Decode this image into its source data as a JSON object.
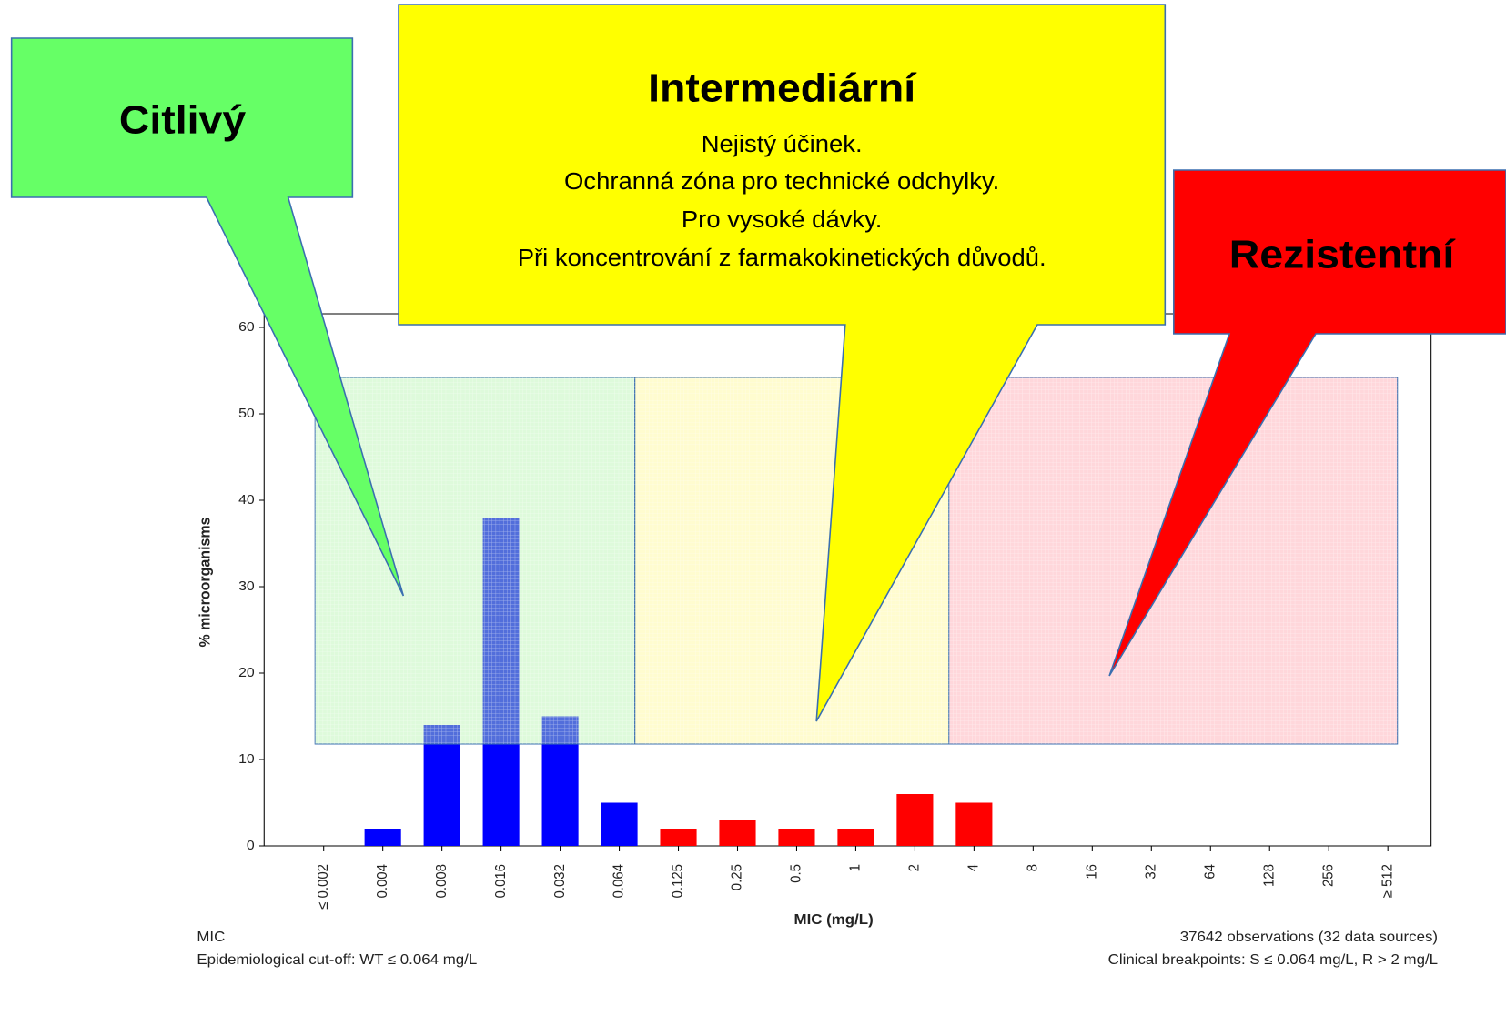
{
  "chart_data": {
    "type": "bar",
    "categories": [
      "≤ 0.002",
      "0.004",
      "0.008",
      "0.016",
      "0.032",
      "0.064",
      "0.125",
      "0.25",
      "0.5",
      "1",
      "2",
      "4",
      "8",
      "16",
      "32",
      "64",
      "128",
      "256",
      "≥ 512"
    ],
    "values": [
      0,
      2,
      14,
      38,
      15,
      5,
      2,
      3,
      2,
      2,
      6,
      5,
      0,
      0,
      0,
      0,
      0,
      0,
      0
    ],
    "bar_colors": [
      "#0000ff",
      "#0000ff",
      "#0000ff",
      "#0000ff",
      "#0000ff",
      "#0000ff",
      "#ff0000",
      "#ff0000",
      "#ff0000",
      "#ff0000",
      "#ff0000",
      "#ff0000",
      "#ff0000",
      "#ff0000",
      "#ff0000",
      "#ff0000",
      "#ff0000",
      "#ff0000",
      "#ff0000"
    ],
    "ylim": [
      0,
      60
    ],
    "yticks": [
      0,
      10,
      20,
      30,
      40,
      50,
      60
    ],
    "y_label": "% microorganisms",
    "x_label": "MIC (mg/L)",
    "footer_left": [
      "MIC",
      "Epidemiological cut-off: WT ≤ 0.064 mg/L"
    ],
    "footer_right": [
      "37642 observations (32 data sources)",
      "Clinical breakpoints: S ≤ 0.064 mg/L,  R > 2 mg/L"
    ],
    "callouts": [
      {
        "title": "Citlivý",
        "lines": []
      },
      {
        "title": "Intermediární",
        "lines": [
          "Nejistý účinek.",
          "Ochranná zóna pro technické odchylky.",
          "Pro vysoké dávky.",
          "Při koncentrování z farmakokinetických důvodů."
        ]
      },
      {
        "title": "Rezistentní",
        "lines": []
      }
    ]
  }
}
